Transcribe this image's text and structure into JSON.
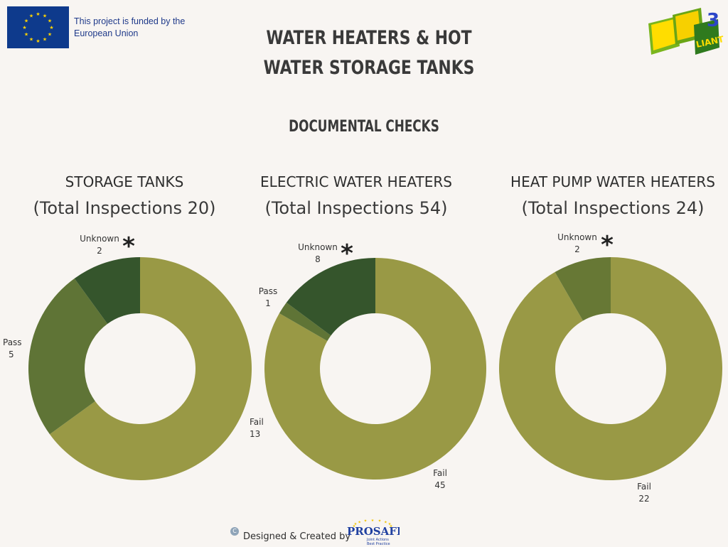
{
  "header": {
    "eu_funding_text": "This project is funded by the European Union",
    "title_line1": "WATER HEATERS & HOT",
    "title_line2": "WATER STORAGE TANKS",
    "subtitle": "DOCUMENTAL CHECKS"
  },
  "footer": {
    "credit": "Designed & Created by",
    "copyright_symbol": "C",
    "logo_text": "PROSAFE",
    "logo_tagline_1": "Joint Actions",
    "logo_tagline_2": "Best Practice"
  },
  "colors": {
    "fail": "#999945",
    "pass": "#5f7436",
    "unknown": "#35552c",
    "storage_unknown": "#35552c",
    "hp_unknown": "#677835",
    "background": "#f8f5f2"
  },
  "chart_data": [
    {
      "type": "pie",
      "title": "STORAGE TANKS",
      "subtitle": "(Total Inspections 20)",
      "categories": [
        "Fail",
        "Pass",
        "Unknown"
      ],
      "values": [
        13,
        5,
        2
      ],
      "annotations": [
        "*"
      ],
      "donut": true
    },
    {
      "type": "pie",
      "title": "ELECTRIC WATER HEATERS",
      "subtitle": "(Total Inspections 54)",
      "categories": [
        "Fail",
        "Pass",
        "Unknown"
      ],
      "values": [
        45,
        1,
        8
      ],
      "annotations": [
        "*"
      ],
      "donut": true
    },
    {
      "type": "pie",
      "title": "HEAT PUMP WATER HEATERS",
      "subtitle": "(Total Inspections 24)",
      "categories": [
        "Fail",
        "Unknown"
      ],
      "values": [
        22,
        2
      ],
      "annotations": [
        "*"
      ],
      "donut": true
    }
  ]
}
